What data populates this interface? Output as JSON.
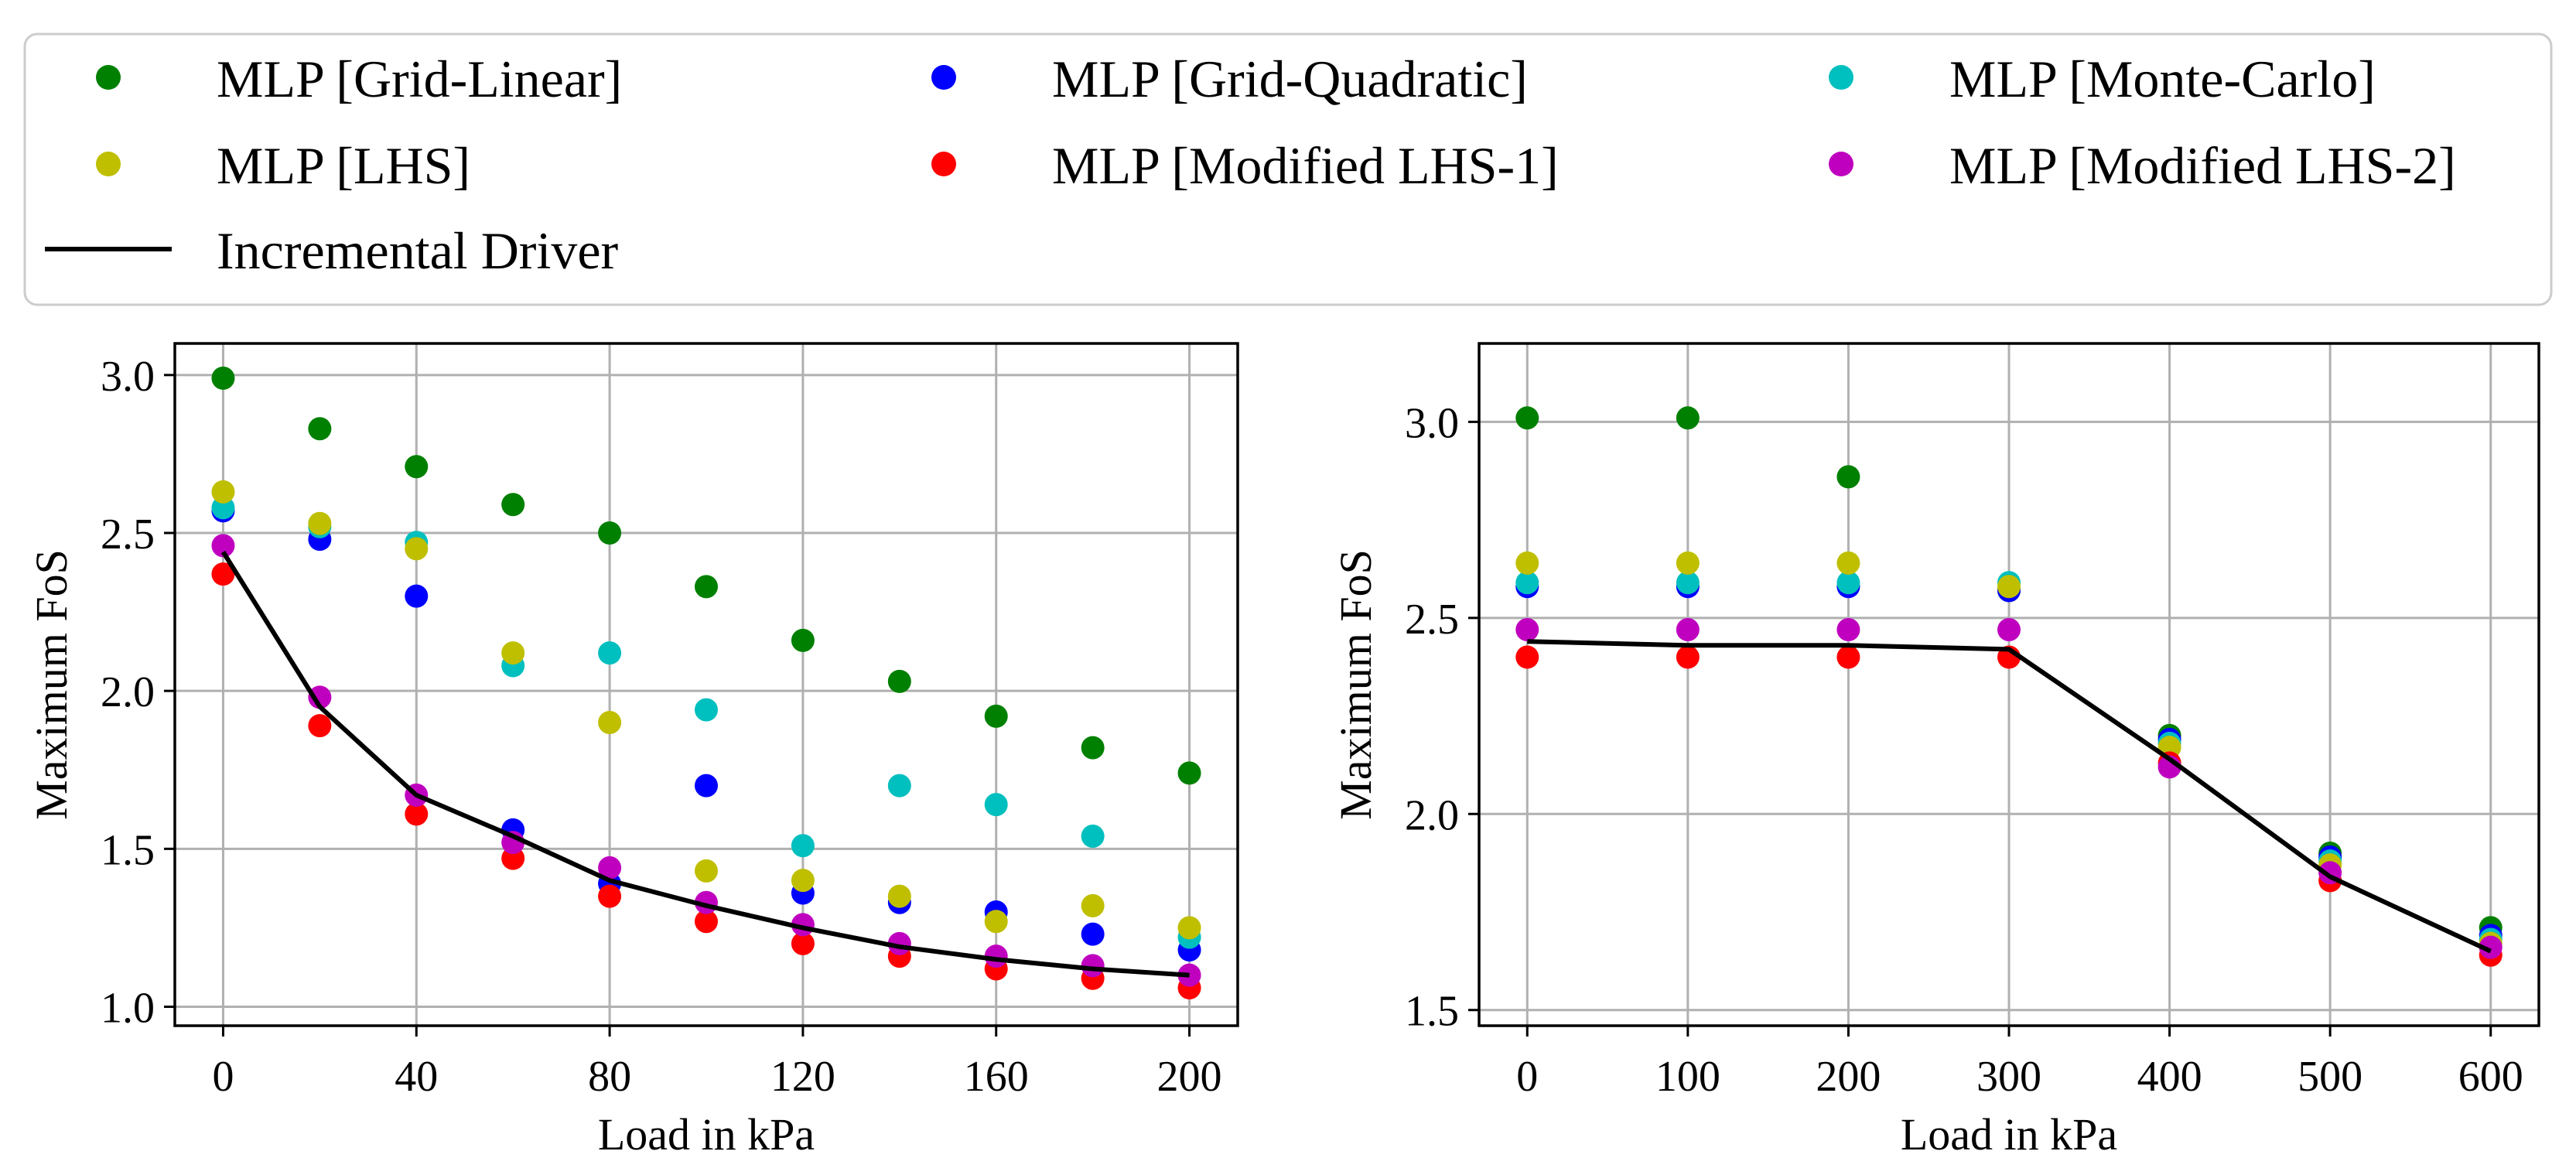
{
  "chart_data": [
    {
      "type": "scatter",
      "id": "left",
      "xlabel": "Load in kPa",
      "ylabel": "Maximum FoS",
      "xlim": [
        -10,
        210
      ],
      "ylim": [
        0.94,
        3.1
      ],
      "xticks": [
        0,
        40,
        80,
        120,
        160,
        200
      ],
      "yticks": [
        1.0,
        1.5,
        2.0,
        2.5,
        3.0
      ],
      "ytick_labels": [
        "1.0",
        "1.5",
        "2.0",
        "2.5",
        "3.0"
      ],
      "grid": true,
      "x": [
        0,
        20,
        40,
        60,
        80,
        100,
        120,
        140,
        160,
        180,
        200
      ],
      "series": [
        {
          "name": "MLP [Grid-Linear]",
          "color": "#008000",
          "values": [
            2.99,
            2.83,
            2.71,
            2.59,
            2.5,
            2.33,
            2.16,
            2.03,
            1.92,
            1.82,
            1.74
          ]
        },
        {
          "name": "MLP [Grid-Quadratic]",
          "color": "#0000ff",
          "values": [
            2.57,
            2.48,
            2.3,
            1.56,
            1.39,
            1.7,
            1.36,
            1.33,
            1.3,
            1.23,
            1.18
          ]
        },
        {
          "name": "MLP [Monte-Carlo]",
          "color": "#00bfbf",
          "values": [
            2.58,
            2.52,
            2.47,
            2.08,
            2.12,
            1.94,
            1.51,
            1.7,
            1.64,
            1.54,
            1.22
          ]
        },
        {
          "name": "MLP [LHS]",
          "color": "#bfbf00",
          "values": [
            2.63,
            2.53,
            2.45,
            2.12,
            1.9,
            1.43,
            1.4,
            1.35,
            1.27,
            1.32,
            1.25
          ]
        },
        {
          "name": "MLP [Modified LHS-1]",
          "color": "#ff0000",
          "values": [
            2.37,
            1.89,
            1.61,
            1.47,
            1.35,
            1.27,
            1.2,
            1.16,
            1.12,
            1.09,
            1.06
          ]
        },
        {
          "name": "MLP [Modified LHS-2]",
          "color": "#bf00bf",
          "values": [
            2.46,
            1.98,
            1.67,
            1.52,
            1.44,
            1.33,
            1.26,
            1.2,
            1.16,
            1.13,
            1.1
          ]
        }
      ],
      "line": {
        "name": "Incremental Driver",
        "color": "#000000",
        "values": [
          2.44,
          1.95,
          1.67,
          1.54,
          1.4,
          1.32,
          1.25,
          1.19,
          1.15,
          1.12,
          1.1
        ]
      }
    },
    {
      "type": "scatter",
      "id": "right",
      "xlabel": "Load in kPa",
      "ylabel": "Maximum FoS",
      "xlim": [
        -30,
        630
      ],
      "ylim": [
        1.46,
        3.2
      ],
      "xticks": [
        0,
        100,
        200,
        300,
        400,
        500,
        600
      ],
      "yticks": [
        1.5,
        2.0,
        2.5,
        3.0
      ],
      "ytick_labels": [
        "1.5",
        "2.0",
        "2.5",
        "3.0"
      ],
      "grid": true,
      "x": [
        0,
        100,
        200,
        300,
        400,
        500,
        600
      ],
      "series": [
        {
          "name": "MLP [Grid-Linear]",
          "color": "#008000",
          "values": [
            3.01,
            3.01,
            2.86,
            2.57,
            2.2,
            1.9,
            1.71
          ]
        },
        {
          "name": "MLP [Grid-Quadratic]",
          "color": "#0000ff",
          "values": [
            2.58,
            2.58,
            2.58,
            2.57,
            2.19,
            1.89,
            1.69
          ]
        },
        {
          "name": "MLP [Monte-Carlo]",
          "color": "#00bfbf",
          "values": [
            2.59,
            2.59,
            2.59,
            2.59,
            2.18,
            1.88,
            1.68
          ]
        },
        {
          "name": "MLP [LHS]",
          "color": "#bfbf00",
          "values": [
            2.64,
            2.64,
            2.64,
            2.58,
            2.17,
            1.87,
            1.67
          ]
        },
        {
          "name": "MLP [Modified LHS-1]",
          "color": "#ff0000",
          "values": [
            2.4,
            2.4,
            2.4,
            2.4,
            2.13,
            1.83,
            1.64
          ]
        },
        {
          "name": "MLP [Modified LHS-2]",
          "color": "#bf00bf",
          "values": [
            2.47,
            2.47,
            2.47,
            2.47,
            2.12,
            1.85,
            1.66
          ]
        }
      ],
      "line": {
        "name": "Incremental Driver",
        "color": "#000000",
        "values": [
          2.44,
          2.43,
          2.43,
          2.42,
          2.14,
          1.84,
          1.65
        ]
      }
    }
  ],
  "legend": {
    "placement": "top",
    "entries": [
      {
        "label": "MLP [Grid-Linear]",
        "color": "#008000",
        "kind": "marker"
      },
      {
        "label": "MLP [Grid-Quadratic]",
        "color": "#0000ff",
        "kind": "marker"
      },
      {
        "label": "MLP [Monte-Carlo]",
        "color": "#00bfbf",
        "kind": "marker"
      },
      {
        "label": "MLP [LHS]",
        "color": "#bfbf00",
        "kind": "marker"
      },
      {
        "label": "MLP [Modified LHS-1]",
        "color": "#ff0000",
        "kind": "marker"
      },
      {
        "label": "MLP [Modified LHS-2]",
        "color": "#bf00bf",
        "kind": "marker"
      },
      {
        "label": "Incremental Driver",
        "color": "#000000",
        "kind": "line"
      }
    ]
  }
}
